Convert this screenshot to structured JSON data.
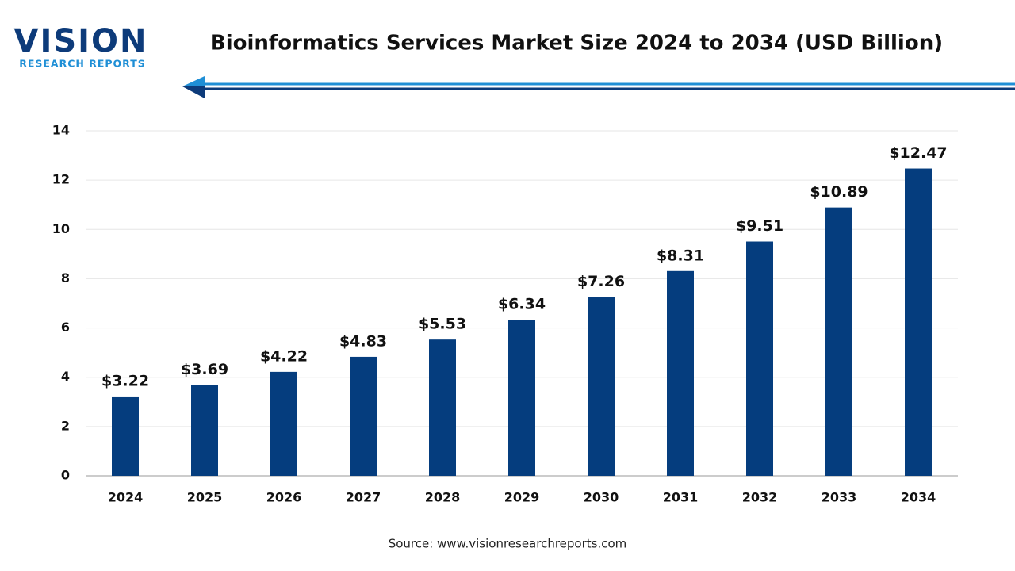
{
  "logo": {
    "name": "VISION",
    "tagline": "RESEARCH REPORTS"
  },
  "chart_data": {
    "type": "bar",
    "title": "Bioinformatics Services Market Size 2024 to 2034 (USD Billion)",
    "categories": [
      "2024",
      "2025",
      "2026",
      "2027",
      "2028",
      "2029",
      "2030",
      "2031",
      "2032",
      "2033",
      "2034"
    ],
    "values": [
      3.22,
      3.69,
      4.22,
      4.83,
      5.53,
      6.34,
      7.26,
      8.31,
      9.51,
      10.89,
      12.47
    ],
    "value_labels": [
      "$3.22",
      "$3.69",
      "$4.22",
      "$4.83",
      "$5.53",
      "$6.34",
      "$7.26",
      "$8.31",
      "$9.51",
      "$10.89",
      "$12.47"
    ],
    "color": "#053d7e",
    "ylim": [
      0,
      14
    ],
    "yticks": [
      0,
      2,
      4,
      6,
      8,
      10,
      12,
      14
    ],
    "grid": true,
    "source": "Source: www.visionresearchreports.com"
  }
}
